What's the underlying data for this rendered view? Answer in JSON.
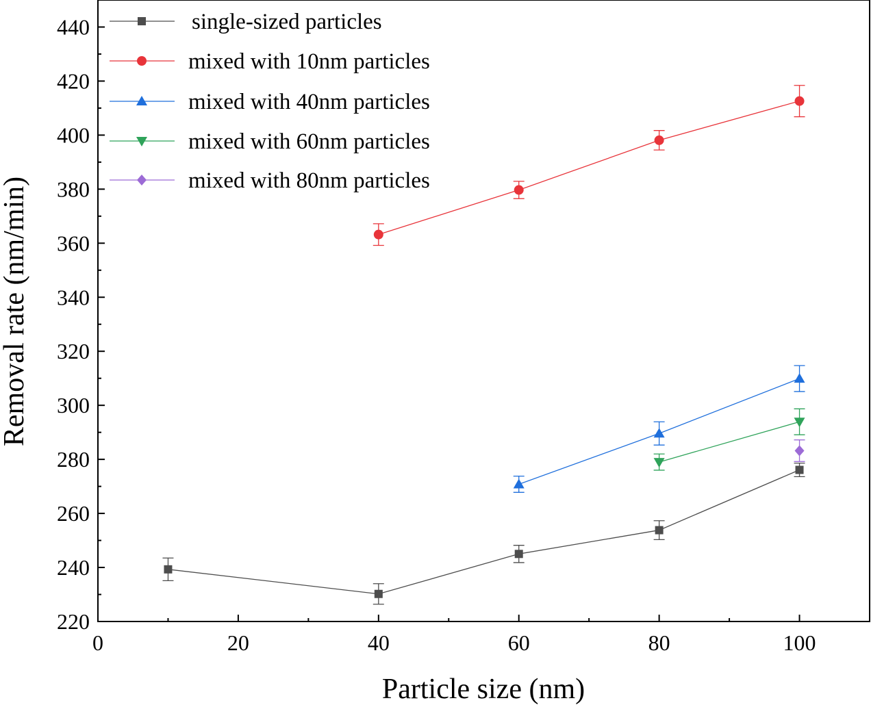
{
  "chart_data": {
    "type": "line",
    "xlabel": "Particle size (nm)",
    "ylabel": "Removal rate (nm/min)",
    "xlim": [
      0,
      110
    ],
    "ylim": [
      220,
      450
    ],
    "x_ticks": [
      0,
      20,
      40,
      60,
      80,
      100
    ],
    "y_ticks": [
      220,
      240,
      260,
      280,
      300,
      320,
      340,
      360,
      380,
      400,
      420,
      440
    ],
    "x_tick_labels": [
      "0",
      "20",
      "40",
      "60",
      "80",
      "100"
    ],
    "y_tick_labels": [
      "220",
      "240",
      "260",
      "280",
      "300",
      "320",
      "340",
      "360",
      "380",
      "400",
      "420",
      "440"
    ],
    "legend_position": "top-left",
    "grid": false,
    "series": [
      {
        "name": "single-sized particles",
        "color": "#4d4d4d",
        "marker": "square",
        "x": [
          10,
          40,
          60,
          80,
          100
        ],
        "y": [
          239.3,
          230.2,
          245.0,
          253.8,
          276.1
        ],
        "error": [
          4.2,
          3.8,
          3.2,
          3.5,
          2.5
        ]
      },
      {
        "name": "mixed with 10nm particles",
        "color": "#e8343a",
        "marker": "circle",
        "x": [
          40,
          60,
          80,
          100
        ],
        "y": [
          363.2,
          379.7,
          398.1,
          412.6
        ],
        "error": [
          4.0,
          3.2,
          3.6,
          5.8
        ]
      },
      {
        "name": "mixed with 40nm particles",
        "color": "#1f6fdc",
        "marker": "triangle-up",
        "x": [
          60,
          80,
          100
        ],
        "y": [
          270.8,
          289.6,
          309.9
        ],
        "error": [
          3.0,
          4.3,
          4.8
        ]
      },
      {
        "name": "mixed with 60nm particles",
        "color": "#2fa35a",
        "marker": "triangle-down",
        "x": [
          80,
          100
        ],
        "y": [
          279.0,
          293.9
        ],
        "error": [
          3.0,
          4.8
        ]
      },
      {
        "name": "mixed with 80nm particles",
        "color": "#9c6bd6",
        "marker": "diamond",
        "x": [
          100
        ],
        "y": [
          283.2
        ],
        "error": [
          4.0
        ]
      }
    ]
  }
}
